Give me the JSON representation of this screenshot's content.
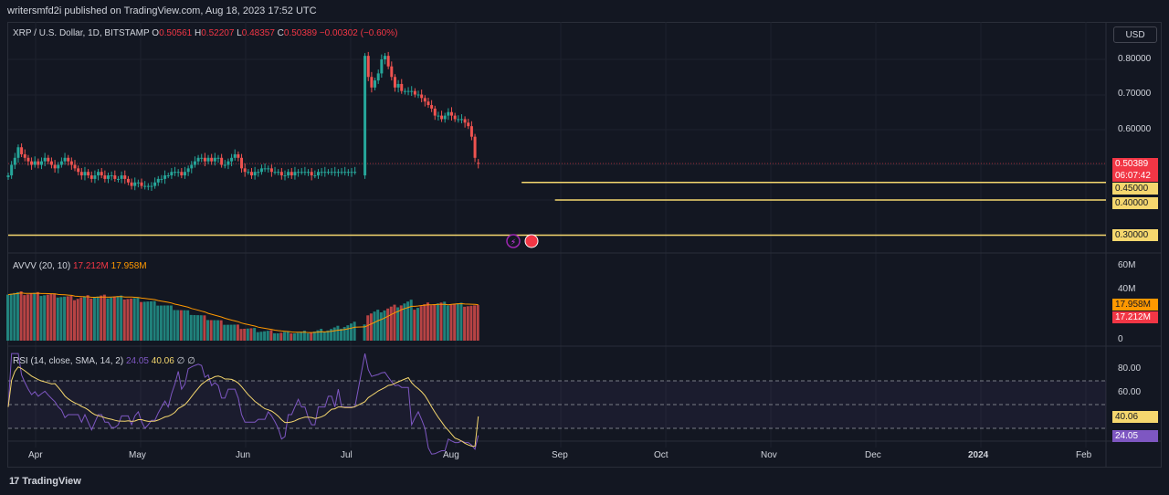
{
  "header": {
    "published": "writersmfd2i published on TradingView.com, Aug 18, 2023 17:52 UTC"
  },
  "price_pane": {
    "symbol": "XRP / U.S. Dollar, 1D, BITSTAMP",
    "open_label": "O",
    "open": "0.50561",
    "high_label": "H",
    "high": "0.52207",
    "low_label": "L",
    "low": "0.48357",
    "close_label": "C",
    "close": "0.50389",
    "change": "−0.00302 (−0.60%)",
    "currency_button": "USD",
    "axis_ticks": [
      "0.80000",
      "0.70000",
      "0.60000"
    ],
    "last_price": "0.50389",
    "countdown": "06:07:42",
    "levels": [
      "0.45000",
      "0.40000",
      "0.30000"
    ]
  },
  "volume_pane": {
    "indicator": "AVVV (20, 10)",
    "vol_value": "17.212M",
    "ma_value": "17.958M",
    "axis_ticks": [
      "60M",
      "40M",
      "0"
    ],
    "tag_ma": "17.958M",
    "tag_vol": "17.212M"
  },
  "rsi_pane": {
    "indicator": "RSI (14, close, SMA, 14, 2)",
    "rsi_value": "24.05",
    "sma_value": "40.06",
    "extra1": "∅",
    "extra2": "∅",
    "axis_ticks": [
      "80.00",
      "60.00"
    ],
    "tag_sma": "40.06",
    "tag_rsi": "24.05"
  },
  "time_axis": [
    "Apr",
    "May",
    "Jun",
    "Jul",
    "Aug",
    "Sep",
    "Oct",
    "Nov",
    "Dec",
    "2024",
    "Feb"
  ],
  "footer": {
    "brand": "TradingView",
    "mark": "17"
  },
  "colors": {
    "background": "#131722",
    "up": "#26a69a",
    "down": "#ef5350",
    "level_line": "#f5d76e",
    "volume_ma": "#ff9800",
    "rsi_line": "#7e57c2",
    "rsi_sma": "#f5d76e"
  },
  "chart_data": {
    "type": "candlestick",
    "title": "XRP / U.S. Dollar, 1D, BITSTAMP",
    "x_range": [
      "2023-03-28",
      "2024-02-20"
    ],
    "y_range": [
      0.3,
      0.8
    ],
    "horizontal_levels": [
      0.45,
      0.4,
      0.3
    ],
    "close_segments": [
      {
        "start": "2023-03-28",
        "closes": [
          0.47,
          0.5,
          0.52,
          0.55,
          0.53,
          0.52,
          0.51,
          0.5,
          0.51,
          0.5,
          0.51,
          0.52,
          0.51,
          0.5,
          0.49,
          0.5,
          0.51,
          0.52,
          0.51,
          0.5,
          0.49,
          0.48,
          0.47,
          0.48,
          0.47,
          0.46,
          0.47,
          0.48,
          0.47,
          0.46,
          0.47,
          0.47,
          0.46,
          0.46,
          0.47,
          0.46,
          0.45,
          0.44,
          0.45,
          0.45,
          0.44,
          0.44,
          0.44,
          0.44,
          0.45,
          0.46,
          0.46,
          0.47,
          0.47,
          0.48,
          0.48,
          0.48,
          0.47,
          0.48,
          0.49,
          0.5,
          0.51,
          0.52,
          0.52,
          0.51,
          0.52,
          0.51,
          0.52,
          0.52,
          0.5,
          0.5,
          0.51,
          0.52,
          0.53,
          0.52,
          0.49,
          0.48,
          0.48,
          0.47,
          0.48,
          0.48,
          0.49,
          0.49,
          0.49,
          0.48,
          0.48,
          0.48,
          0.47,
          0.47,
          0.48,
          0.47,
          0.48,
          0.48,
          0.48,
          0.48,
          0.48,
          0.47,
          0.47,
          0.48,
          0.48,
          0.48,
          0.48,
          0.48,
          0.48,
          0.48,
          0.48,
          0.48,
          0.48,
          0.48,
          0.48
        ]
      },
      {
        "start": "2023-07-13",
        "closes": [
          0.81,
          0.75,
          0.72,
          0.74,
          0.76,
          0.8,
          0.81,
          0.78,
          0.75,
          0.72,
          0.73,
          0.71,
          0.71,
          0.71,
          0.71,
          0.7,
          0.7,
          0.69,
          0.68,
          0.67,
          0.66,
          0.64,
          0.64,
          0.63,
          0.64,
          0.65,
          0.64,
          0.63,
          0.63,
          0.63,
          0.62,
          0.61,
          0.58,
          0.52,
          0.5
        ]
      }
    ],
    "volume": {
      "indicator": "AVVV (20, 10)",
      "axis_ticks": [
        "0",
        "40M",
        "60M"
      ],
      "last": "17.212M",
      "ma_last": "17.958M"
    },
    "rsi": {
      "indicator": "RSI (14, close, SMA, 14, 2)",
      "last": 24.05,
      "sma_last": 40.06,
      "bands": [
        30,
        50,
        70
      ]
    }
  }
}
